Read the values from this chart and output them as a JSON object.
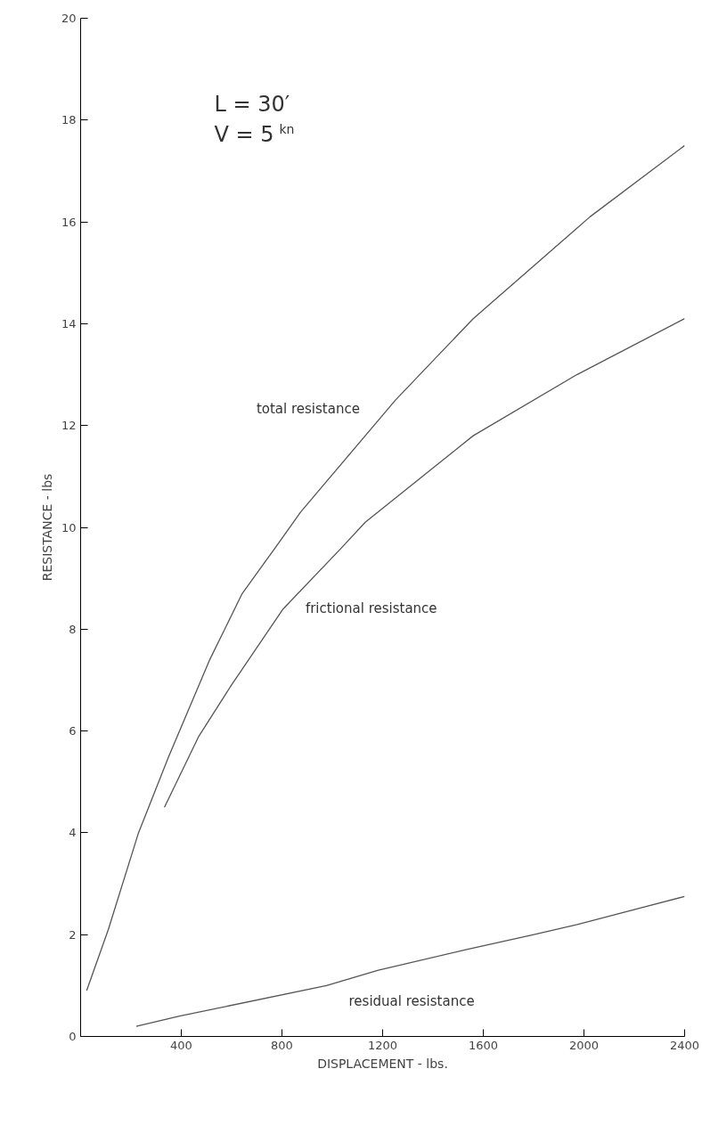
{
  "chart_data": {
    "type": "line",
    "xlabel": "DISPLACEMENT - lbs.",
    "ylabel": "RESISTANCE - lbs",
    "annotations": [
      "L = 30′",
      "V = 5$^{kn}$"
    ],
    "xlim": [
      0,
      2400
    ],
    "xticks": [
      400,
      800,
      1200,
      1600,
      2000,
      2400
    ],
    "ylim": [
      0,
      20
    ],
    "yticks": [
      0,
      2,
      4,
      6,
      8,
      10,
      12,
      14,
      16,
      18,
      20
    ],
    "grid": false,
    "marker": "none",
    "line_style": "solid",
    "series": [
      {
        "name": "total resistance",
        "color": "#555555",
        "x": [
          24,
          110,
          230,
          350,
          513,
          642,
          788,
          874,
          1251,
          1560,
          2024,
          2400
        ],
        "values": [
          0.9,
          2.1,
          4.0,
          5.5,
          7.4,
          8.7,
          9.7,
          10.3,
          12.5,
          14.1,
          16.1,
          17.5
        ]
      },
      {
        "name": "frictional resistance",
        "color": "#555555",
        "x": [
          333,
          470,
          599,
          805,
          1037,
          1131,
          1560,
          1972,
          2400
        ],
        "values": [
          4.5,
          5.9,
          6.9,
          8.4,
          9.6,
          10.1,
          11.8,
          13.0,
          14.1
        ]
      },
      {
        "name": "residual resistance",
        "color": "#555555",
        "x": [
          221,
          393,
          977,
          1183,
          1526,
          1801,
          1973,
          2400
        ],
        "values": [
          0.2,
          0.4,
          1.0,
          1.3,
          1.7,
          2.0,
          2.2,
          2.75
        ]
      }
    ]
  }
}
